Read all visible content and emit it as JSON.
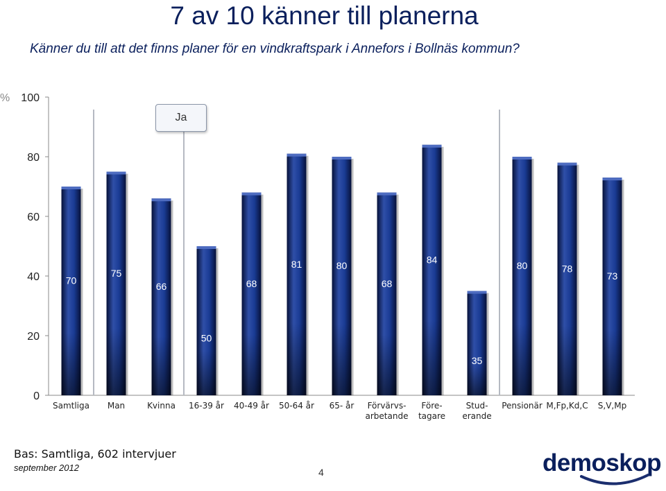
{
  "title": "7 av 10 känner till planerna",
  "subtitle": "Känner du till att det finns planer för en vindkraftspark i Annefors i Bollnäs kommun?",
  "legend_label": "Ja",
  "footer": {
    "base": "Bas: Samtliga, 602 intervjuer",
    "date": "september 2012",
    "page_number": "4",
    "logo_text": "demoskop"
  },
  "colors": {
    "bar": "#0d2a7a",
    "bar_highlight": "#2f4fa8",
    "bar_dark": "#07123a",
    "divider": "#b5b9c2",
    "text": "#0a1f5c"
  },
  "chart_data": {
    "type": "bar",
    "unit_label": "%",
    "categories": [
      [
        "Samtliga"
      ],
      [
        "Man"
      ],
      [
        "Kvinna"
      ],
      [
        "16-39 år"
      ],
      [
        "40-49 år"
      ],
      [
        "50-64 år"
      ],
      [
        "65- år"
      ],
      [
        "Förvärvs-",
        "arbetande"
      ],
      [
        "Före-",
        "tagare"
      ],
      [
        "Stud-",
        "erande"
      ],
      [
        "Pensionär"
      ],
      [
        "M,Fp,Kd,C"
      ],
      [
        "S,V,Mp"
      ]
    ],
    "series": [
      {
        "name": "Ja",
        "values": [
          70,
          75,
          66,
          50,
          68,
          81,
          80,
          68,
          84,
          35,
          80,
          78,
          73
        ]
      }
    ],
    "ylim": [
      0,
      100
    ],
    "yticks": [
      0,
      20,
      40,
      60,
      80,
      100
    ],
    "grid": false,
    "group_dividers_after": [
      0,
      2,
      9
    ]
  }
}
